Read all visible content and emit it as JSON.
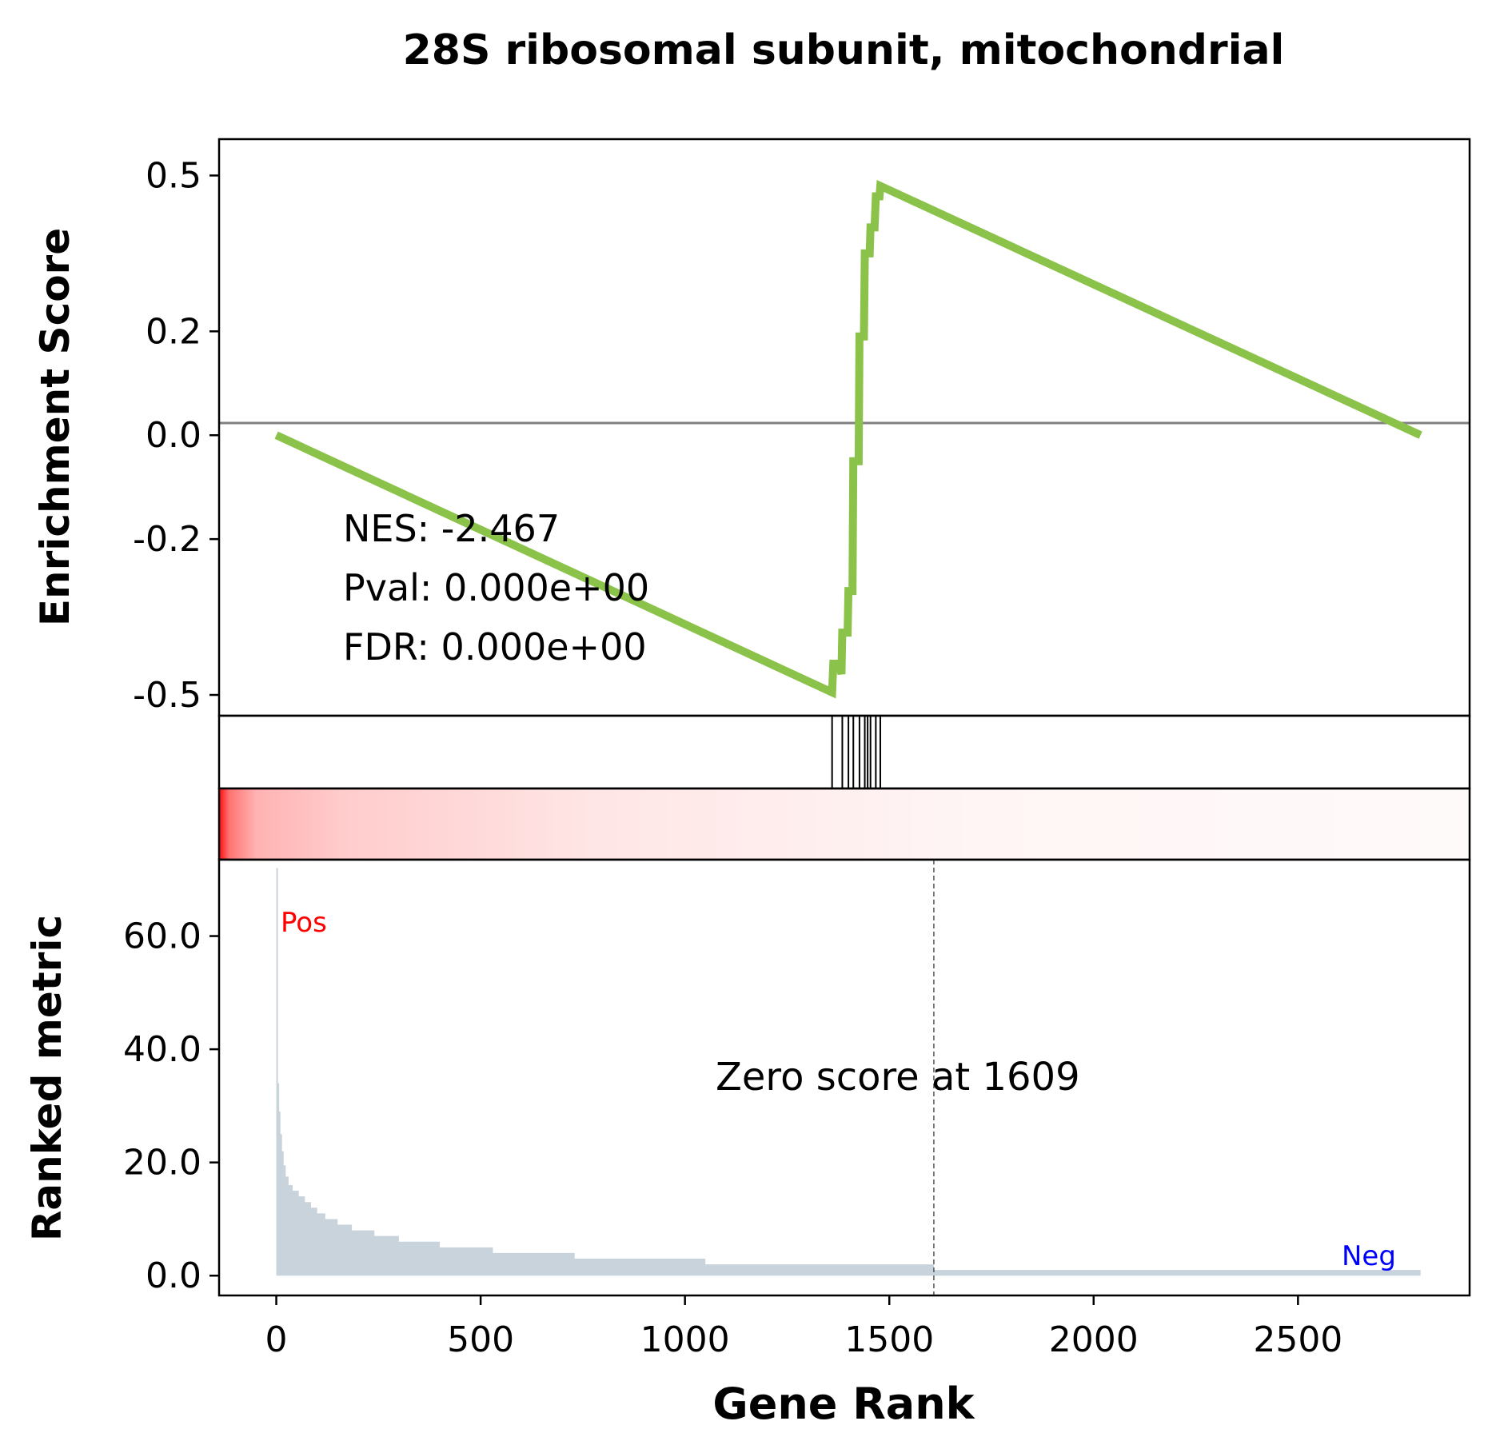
{
  "chart_data": {
    "type": "line",
    "title": "28S ribosomal subunit, mitochondrial",
    "xlabel": "Gene Rank",
    "xlim": [
      -140,
      2920
    ],
    "x_ticks": [
      0,
      500,
      1000,
      1500,
      2000,
      2500
    ],
    "x_tick_labels": [
      "0",
      "500",
      "1000",
      "1500",
      "2000",
      "2500"
    ],
    "enrichment": {
      "ylabel": "Enrichment Score",
      "ylim": [
        -0.54,
        0.57
      ],
      "y_ticks": [
        0.5,
        0.2,
        0.0,
        -0.2,
        -0.5
      ],
      "y_tick_labels": [
        "0.5",
        "0.2",
        "0.0",
        "-0.2",
        "-0.5"
      ],
      "color": "#8bc34a",
      "baseline_color": "#808080",
      "series": [
        {
          "x": [
            0,
            1360,
            1363,
            1378,
            1383,
            1385,
            1398,
            1400,
            1410,
            1412,
            1425,
            1427,
            1438,
            1440,
            1452,
            1454,
            1464,
            1467,
            1476,
            1478,
            2800
          ],
          "y": [
            0.0,
            -0.495,
            -0.44,
            -0.44,
            -0.46,
            -0.38,
            -0.38,
            -0.3,
            -0.3,
            -0.05,
            -0.05,
            0.19,
            0.19,
            0.35,
            0.35,
            0.4,
            0.4,
            0.46,
            0.46,
            0.48,
            0.0
          ]
        }
      ],
      "annotations": [
        "NES: -2.467",
        "Pval: 0.000e+00",
        "FDR: 0.000e+00"
      ]
    },
    "hits": [
      1360,
      1385,
      1400,
      1412,
      1427,
      1440,
      1447,
      1454,
      1467,
      1478
    ],
    "heatmap_color": "#ff0000",
    "ranked_metric": {
      "ylabel": "Ranked metric",
      "ylim": [
        -3.5,
        73.5
      ],
      "y_ticks": [
        0,
        20,
        40,
        60
      ],
      "y_tick_labels": [
        "0.0",
        "20.0",
        "40.0",
        "60.0"
      ],
      "color": "#c8d3dc",
      "x": [
        0,
        4,
        7,
        10,
        14,
        18,
        23,
        30,
        40,
        55,
        70,
        85,
        100,
        120,
        150,
        185,
        240,
        300,
        400,
        530,
        730,
        1050,
        1609,
        2800
      ],
      "y": [
        72,
        34,
        29,
        25,
        22,
        19.5,
        17.5,
        16,
        15,
        14,
        13,
        12,
        11,
        10,
        9,
        8,
        7,
        6,
        5,
        4,
        3,
        2,
        1,
        1
      ],
      "zero_score_label": "Zero score at 1609",
      "zero_score_x": 1609,
      "pos_label": "Pos",
      "pos_color": "#ff0000",
      "neg_label": "Neg",
      "neg_color": "#0000ff"
    }
  }
}
